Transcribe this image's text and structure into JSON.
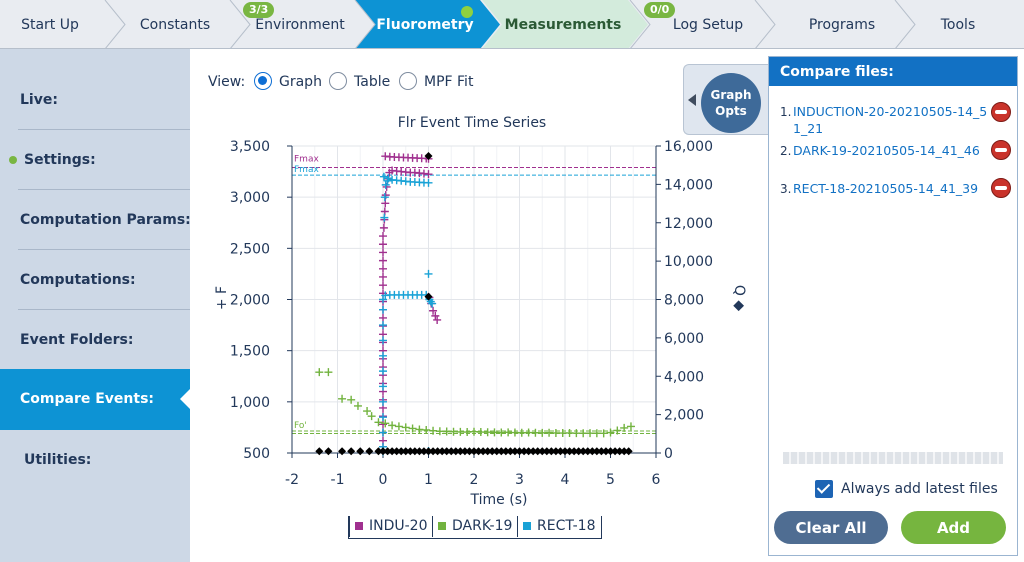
{
  "tabs": [
    {
      "label": "Start Up",
      "state": "normal"
    },
    {
      "label": "Constants",
      "state": "normal"
    },
    {
      "label": "Environment",
      "state": "normal",
      "badge": "3/3"
    },
    {
      "label": "Fluorometry",
      "state": "active"
    },
    {
      "label": "Measurements",
      "state": "green"
    },
    {
      "label": "Log Setup",
      "state": "normal",
      "badge": "0/0"
    },
    {
      "label": "Programs",
      "state": "normal"
    },
    {
      "label": "Tools",
      "state": "normal"
    }
  ],
  "sidebar": {
    "items": [
      {
        "label": "Live:"
      },
      {
        "label": "Settings:",
        "dot": true
      },
      {
        "label": "Computation Params:"
      },
      {
        "label": "Computations:"
      },
      {
        "label": "Event Folders:"
      },
      {
        "label": "Compare Events:",
        "selected": true
      },
      {
        "label": "Utilities:"
      }
    ]
  },
  "view": {
    "label": "View:",
    "options": [
      {
        "label": "Graph",
        "selected": true
      },
      {
        "label": "Table",
        "selected": false
      },
      {
        "label": "MPF Fit",
        "selected": false
      }
    ]
  },
  "graph_opts": {
    "label": "Graph\nOpts"
  },
  "compare": {
    "header": "Compare files:",
    "files": [
      {
        "num": "1.",
        "name": "INDUCTION-20-20210505-14_51_21"
      },
      {
        "num": "2.",
        "name": "DARK-19-20210505-14_41_46"
      },
      {
        "num": "3.",
        "name": "RECT-18-20210505-14_41_39"
      }
    ],
    "always_add_label": "Always add latest files",
    "always_add_checked": true,
    "clear_all_label": "Clear All",
    "add_label": "Add"
  },
  "chart_data": {
    "type": "scatter",
    "title": "Flr Event Time Series",
    "xlabel": "Time (s)",
    "ylabel": "+ F",
    "y2label": "Q ◆",
    "xlim": [
      -2,
      6
    ],
    "ylim": [
      500,
      3500
    ],
    "y2lim": [
      0,
      16000
    ],
    "xticks": [
      "-2",
      "-1",
      "0",
      "1",
      "2",
      "3",
      "4",
      "5",
      "6"
    ],
    "yticks": [
      "500",
      "1,000",
      "1,500",
      "2,000",
      "2,500",
      "3,000",
      "3,500"
    ],
    "y2ticks": [
      "0",
      "2,000",
      "4,000",
      "6,000",
      "8,000",
      "10,000",
      "12,000",
      "14,000",
      "16,000"
    ],
    "grid": true,
    "legend_position": "bottom",
    "reference_lines": [
      {
        "label": "Fmax",
        "y": 3290,
        "color": "#a0308f"
      },
      {
        "label": "Fmax",
        "y": 3215,
        "color": "#19a2d6"
      },
      {
        "label": "Fo'",
        "y": 715,
        "color": "#72b33f"
      },
      {
        "label": "",
        "y": 690,
        "color": "#72b33f"
      }
    ],
    "series": [
      {
        "name": "INDU-20",
        "color": "#a0308f",
        "marker": "plus",
        "points": [
          [
            0,
            560
          ],
          [
            0,
            620
          ],
          [
            0,
            700
          ],
          [
            0,
            780
          ],
          [
            0,
            860
          ],
          [
            0,
            940
          ],
          [
            0,
            1020
          ],
          [
            0,
            1100
          ],
          [
            0,
            1180
          ],
          [
            0,
            1260
          ],
          [
            0,
            1340
          ],
          [
            0,
            1420
          ],
          [
            0,
            1500
          ],
          [
            0,
            1580
          ],
          [
            0,
            1660
          ],
          [
            0,
            1740
          ],
          [
            0,
            1820
          ],
          [
            0,
            1900
          ],
          [
            0,
            1980
          ],
          [
            0,
            2060
          ],
          [
            0,
            2140
          ],
          [
            0,
            2220
          ],
          [
            0,
            2300
          ],
          [
            0,
            2380
          ],
          [
            0,
            2460
          ],
          [
            0,
            2540
          ],
          [
            0,
            2620
          ],
          [
            0.02,
            2700
          ],
          [
            0.03,
            2780
          ],
          [
            0.04,
            2860
          ],
          [
            0.05,
            2940
          ],
          [
            0.06,
            3020
          ],
          [
            0.08,
            3100
          ],
          [
            0.1,
            3180
          ],
          [
            0.14,
            3240
          ],
          [
            0.2,
            3260
          ],
          [
            0.3,
            3255
          ],
          [
            0.4,
            3250
          ],
          [
            0.5,
            3245
          ],
          [
            0.6,
            3240
          ],
          [
            0.7,
            3240
          ],
          [
            0.8,
            3235
          ],
          [
            0.9,
            3230
          ],
          [
            1.0,
            3225
          ],
          [
            0.05,
            3400
          ],
          [
            0.15,
            3395
          ],
          [
            0.25,
            3392
          ],
          [
            0.35,
            3390
          ],
          [
            0.45,
            3388
          ],
          [
            0.55,
            3386
          ],
          [
            0.65,
            3384
          ],
          [
            0.75,
            3382
          ],
          [
            0.85,
            3380
          ],
          [
            0.95,
            3378
          ],
          [
            1.0,
            3375
          ],
          [
            1.02,
            2020
          ],
          [
            1.06,
            1960
          ],
          [
            1.1,
            1890
          ],
          [
            1.15,
            1840
          ],
          [
            1.19,
            1800
          ]
        ]
      },
      {
        "name": "DARK-19",
        "color": "#72b33f",
        "marker": "plus",
        "points": [
          [
            -1.4,
            1290
          ],
          [
            -1.2,
            1290
          ],
          [
            -0.9,
            1030
          ],
          [
            -0.7,
            1020
          ],
          [
            -0.55,
            960
          ],
          [
            -0.35,
            910
          ],
          [
            -0.25,
            860
          ],
          [
            -0.1,
            800
          ],
          [
            0.05,
            790
          ],
          [
            0.2,
            770
          ],
          [
            0.35,
            760
          ],
          [
            0.5,
            750
          ],
          [
            0.65,
            740
          ],
          [
            0.8,
            730
          ],
          [
            0.95,
            725
          ],
          [
            1.1,
            718
          ],
          [
            1.25,
            712
          ],
          [
            1.4,
            710
          ],
          [
            1.55,
            708
          ],
          [
            1.7,
            706
          ],
          [
            1.85,
            705
          ],
          [
            2.0,
            708
          ],
          [
            2.15,
            705
          ],
          [
            2.3,
            703
          ],
          [
            2.45,
            702
          ],
          [
            2.6,
            700
          ],
          [
            2.75,
            702
          ],
          [
            2.9,
            700
          ],
          [
            3.05,
            698
          ],
          [
            3.2,
            700
          ],
          [
            3.35,
            698
          ],
          [
            3.5,
            697
          ],
          [
            3.65,
            698
          ],
          [
            3.8,
            696
          ],
          [
            3.95,
            695
          ],
          [
            4.1,
            696
          ],
          [
            4.25,
            694
          ],
          [
            4.4,
            693
          ],
          [
            4.55,
            694
          ],
          [
            4.7,
            693
          ],
          [
            4.85,
            692
          ],
          [
            5.0,
            700
          ],
          [
            5.15,
            720
          ],
          [
            5.3,
            745
          ],
          [
            5.45,
            760
          ]
        ]
      },
      {
        "name": "RECT-18",
        "color": "#19a2d6",
        "marker": "plus",
        "points": [
          [
            0,
            560
          ],
          [
            0,
            700
          ],
          [
            0,
            850
          ],
          [
            0,
            1000
          ],
          [
            0,
            1150
          ],
          [
            0,
            1300
          ],
          [
            0,
            1450
          ],
          [
            0,
            1600
          ],
          [
            0,
            1750
          ],
          [
            0,
            1900
          ],
          [
            0,
            2000
          ],
          [
            0.05,
            2040
          ],
          [
            0.15,
            2045
          ],
          [
            0.25,
            2045
          ],
          [
            0.35,
            2045
          ],
          [
            0.45,
            2045
          ],
          [
            0.55,
            2045
          ],
          [
            0.65,
            2045
          ],
          [
            0.75,
            2045
          ],
          [
            0.85,
            2045
          ],
          [
            0.95,
            2045
          ],
          [
            1.0,
            2250
          ],
          [
            1.02,
            2000
          ],
          [
            1.05,
            1980
          ],
          [
            1.08,
            1960
          ],
          [
            0.03,
            2800
          ],
          [
            0.04,
            3000
          ],
          [
            0.06,
            3120
          ],
          [
            0.1,
            3160
          ],
          [
            0.2,
            3170
          ],
          [
            0.3,
            3165
          ],
          [
            0.4,
            3160
          ],
          [
            0.5,
            3155
          ],
          [
            0.6,
            3150
          ],
          [
            0.7,
            3148
          ],
          [
            0.8,
            3145
          ],
          [
            0.9,
            3142
          ],
          [
            1.0,
            3140
          ],
          [
            0,
            515
          ],
          [
            1.0,
            520
          ],
          [
            0.02,
            3200
          ],
          [
            0.12,
            3185
          ]
        ]
      },
      {
        "name": "Q",
        "color": "#000000",
        "marker": "diamond",
        "axis": "y2",
        "points": [
          [
            -1.4,
            90
          ],
          [
            -1.2,
            90
          ],
          [
            -0.9,
            90
          ],
          [
            -0.7,
            90
          ],
          [
            -0.5,
            90
          ],
          [
            -0.3,
            90
          ],
          [
            -0.1,
            90
          ],
          [
            0,
            90
          ],
          [
            0.1,
            90
          ],
          [
            0.2,
            90
          ],
          [
            0.3,
            90
          ],
          [
            0.4,
            90
          ],
          [
            0.5,
            90
          ],
          [
            0.6,
            90
          ],
          [
            0.7,
            90
          ],
          [
            0.8,
            90
          ],
          [
            0.9,
            90
          ],
          [
            1.0,
            90
          ],
          [
            1.1,
            90
          ],
          [
            1.2,
            90
          ],
          [
            1.3,
            90
          ],
          [
            1.4,
            90
          ],
          [
            1.5,
            90
          ],
          [
            1.6,
            90
          ],
          [
            1.7,
            90
          ],
          [
            1.8,
            90
          ],
          [
            1.9,
            90
          ],
          [
            2.0,
            90
          ],
          [
            2.1,
            90
          ],
          [
            2.2,
            90
          ],
          [
            2.3,
            90
          ],
          [
            2.4,
            90
          ],
          [
            2.5,
            90
          ],
          [
            2.6,
            90
          ],
          [
            2.7,
            90
          ],
          [
            2.8,
            90
          ],
          [
            2.9,
            90
          ],
          [
            3.0,
            90
          ],
          [
            3.1,
            90
          ],
          [
            3.2,
            90
          ],
          [
            3.3,
            90
          ],
          [
            3.4,
            90
          ],
          [
            3.5,
            90
          ],
          [
            3.6,
            90
          ],
          [
            3.7,
            90
          ],
          [
            3.8,
            90
          ],
          [
            3.9,
            90
          ],
          [
            4.0,
            90
          ],
          [
            4.1,
            90
          ],
          [
            4.2,
            90
          ],
          [
            4.3,
            90
          ],
          [
            4.4,
            90
          ],
          [
            4.5,
            90
          ],
          [
            4.6,
            90
          ],
          [
            4.7,
            90
          ],
          [
            4.8,
            90
          ],
          [
            4.9,
            90
          ],
          [
            5.0,
            90
          ],
          [
            5.1,
            90
          ],
          [
            5.2,
            90
          ],
          [
            5.3,
            90
          ],
          [
            5.4,
            90
          ],
          [
            1.0,
            15480
          ],
          [
            1.0,
            8150
          ]
        ]
      }
    ]
  }
}
